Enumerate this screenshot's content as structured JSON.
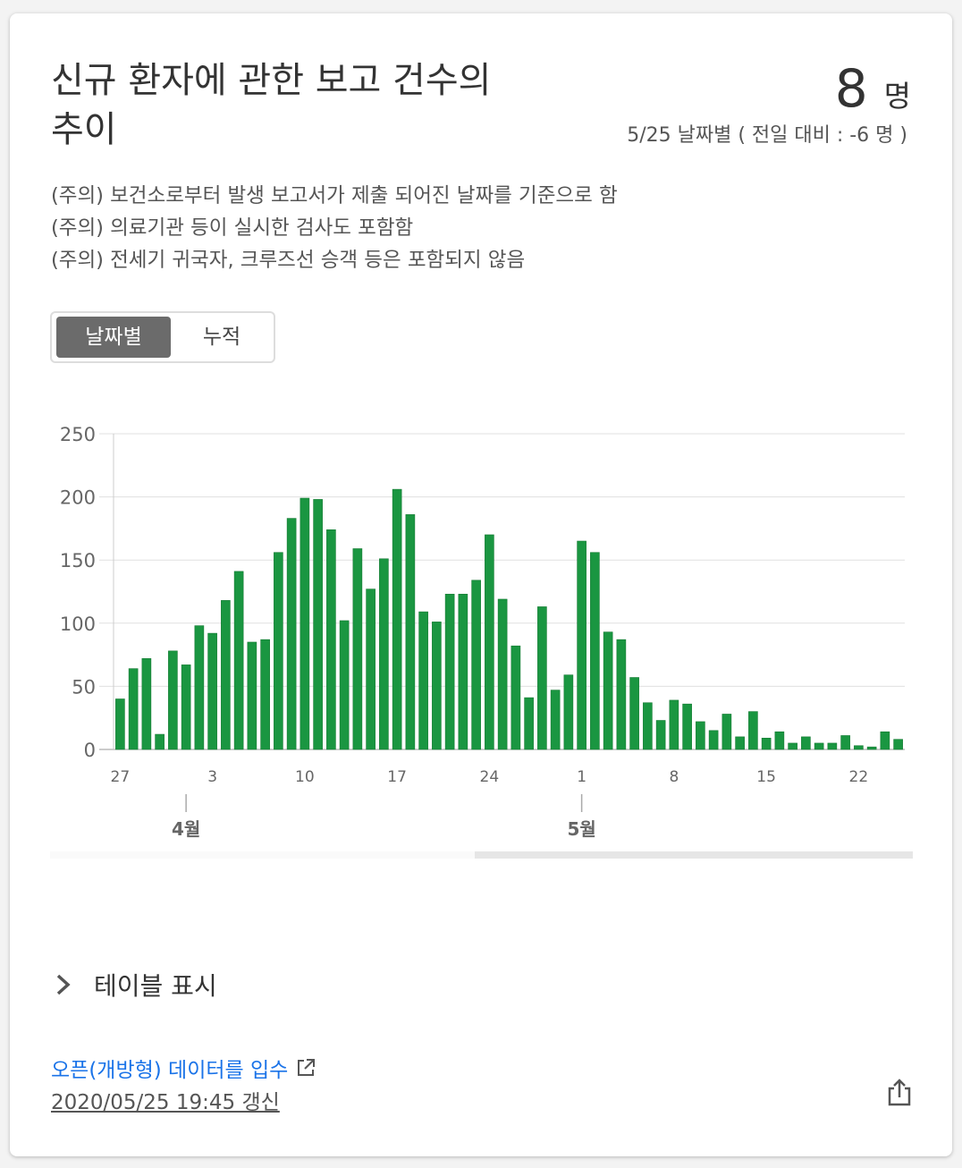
{
  "title": "신규 환자에 관한 보고 건수의 추이",
  "summary": {
    "count": "8",
    "unit": "명",
    "subtitle": "5/25 날짜별 ( 전일 대비 : -6 명 )"
  },
  "notes": [
    "(주의) 보건소로부터 발생 보고서가 제출 되어진 날짜를 기준으로 함",
    "(주의) 의료기관 등이 실시한 검사도 포함함",
    "(주의) 전세기 귀국자, 크루즈선 승객 등은 포함되지 않음"
  ],
  "tabs": {
    "daily": "날짜별",
    "cumulative": "누적",
    "active": "daily"
  },
  "chart_data": {
    "type": "bar",
    "color": "#1a9641",
    "ylim": [
      0,
      250
    ],
    "yticks": [
      0,
      50,
      100,
      150,
      200,
      250
    ],
    "xtick_labels": [
      {
        "index": 0,
        "label": "27"
      },
      {
        "index": 7,
        "label": "3"
      },
      {
        "index": 14,
        "label": "10"
      },
      {
        "index": 21,
        "label": "17"
      },
      {
        "index": 28,
        "label": "24"
      },
      {
        "index": 35,
        "label": "1"
      },
      {
        "index": 42,
        "label": "8"
      },
      {
        "index": 49,
        "label": "15"
      },
      {
        "index": 56,
        "label": "22"
      }
    ],
    "month_labels": [
      {
        "index": 5,
        "label": "4월"
      },
      {
        "index": 35,
        "label": "5월"
      }
    ],
    "values": [
      40,
      64,
      72,
      12,
      78,
      67,
      98,
      92,
      118,
      141,
      85,
      87,
      156,
      183,
      199,
      198,
      174,
      102,
      159,
      127,
      151,
      206,
      186,
      109,
      101,
      123,
      123,
      134,
      170,
      119,
      82,
      41,
      113,
      47,
      59,
      165,
      156,
      93,
      87,
      57,
      37,
      23,
      39,
      36,
      22,
      15,
      28,
      10,
      30,
      9,
      14,
      5,
      10,
      5,
      5,
      11,
      3,
      2,
      14,
      8
    ]
  },
  "table_toggle": "테이블 표시",
  "footer": {
    "open_data_link": "오픈(개방형) 데이터를 입수",
    "updated": "2020/05/25 19:45 갱신"
  }
}
